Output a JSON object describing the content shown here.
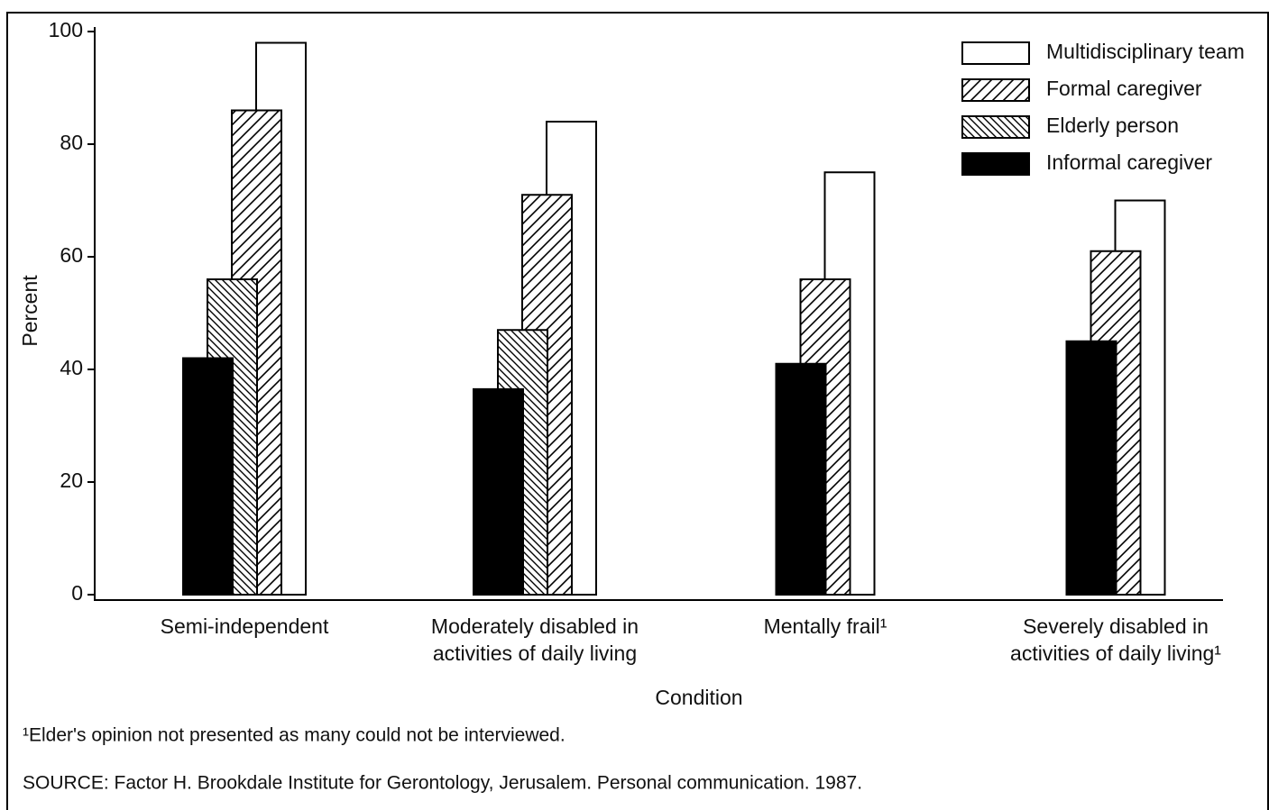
{
  "chart_data": {
    "type": "bar",
    "x_label": "Condition",
    "y_label": "Percent",
    "categories": [
      "Semi-independent",
      "Moderately disabled in activities of daily living",
      "Mentally frail¹",
      "Severely disabled in activities of daily living¹"
    ],
    "series": [
      {
        "name": "Multidisciplinary team",
        "color": "#ffffff",
        "pattern": "none",
        "values": [
          98,
          84,
          75,
          70
        ]
      },
      {
        "name": "Formal caregiver",
        "color": "#ffffff",
        "pattern": "forward",
        "values": [
          86,
          71,
          56,
          61
        ]
      },
      {
        "name": "Elderly person",
        "color": "#ffffff",
        "pattern": "backward",
        "values": [
          56,
          47,
          null,
          null
        ]
      },
      {
        "name": "Informal caregiver",
        "color": "#000000",
        "pattern": "none",
        "values": [
          42,
          36.5,
          41,
          45
        ]
      }
    ],
    "ylim": [
      0,
      100
    ],
    "yticks": [
      0,
      20,
      40,
      60,
      80,
      100
    ],
    "footnote": "¹Elder's opinion not presented as many could not be interviewed.",
    "source": "SOURCE: Factor H. Brookdale Institute for Gerontology, Jerusalem. Personal communication. 1987."
  }
}
